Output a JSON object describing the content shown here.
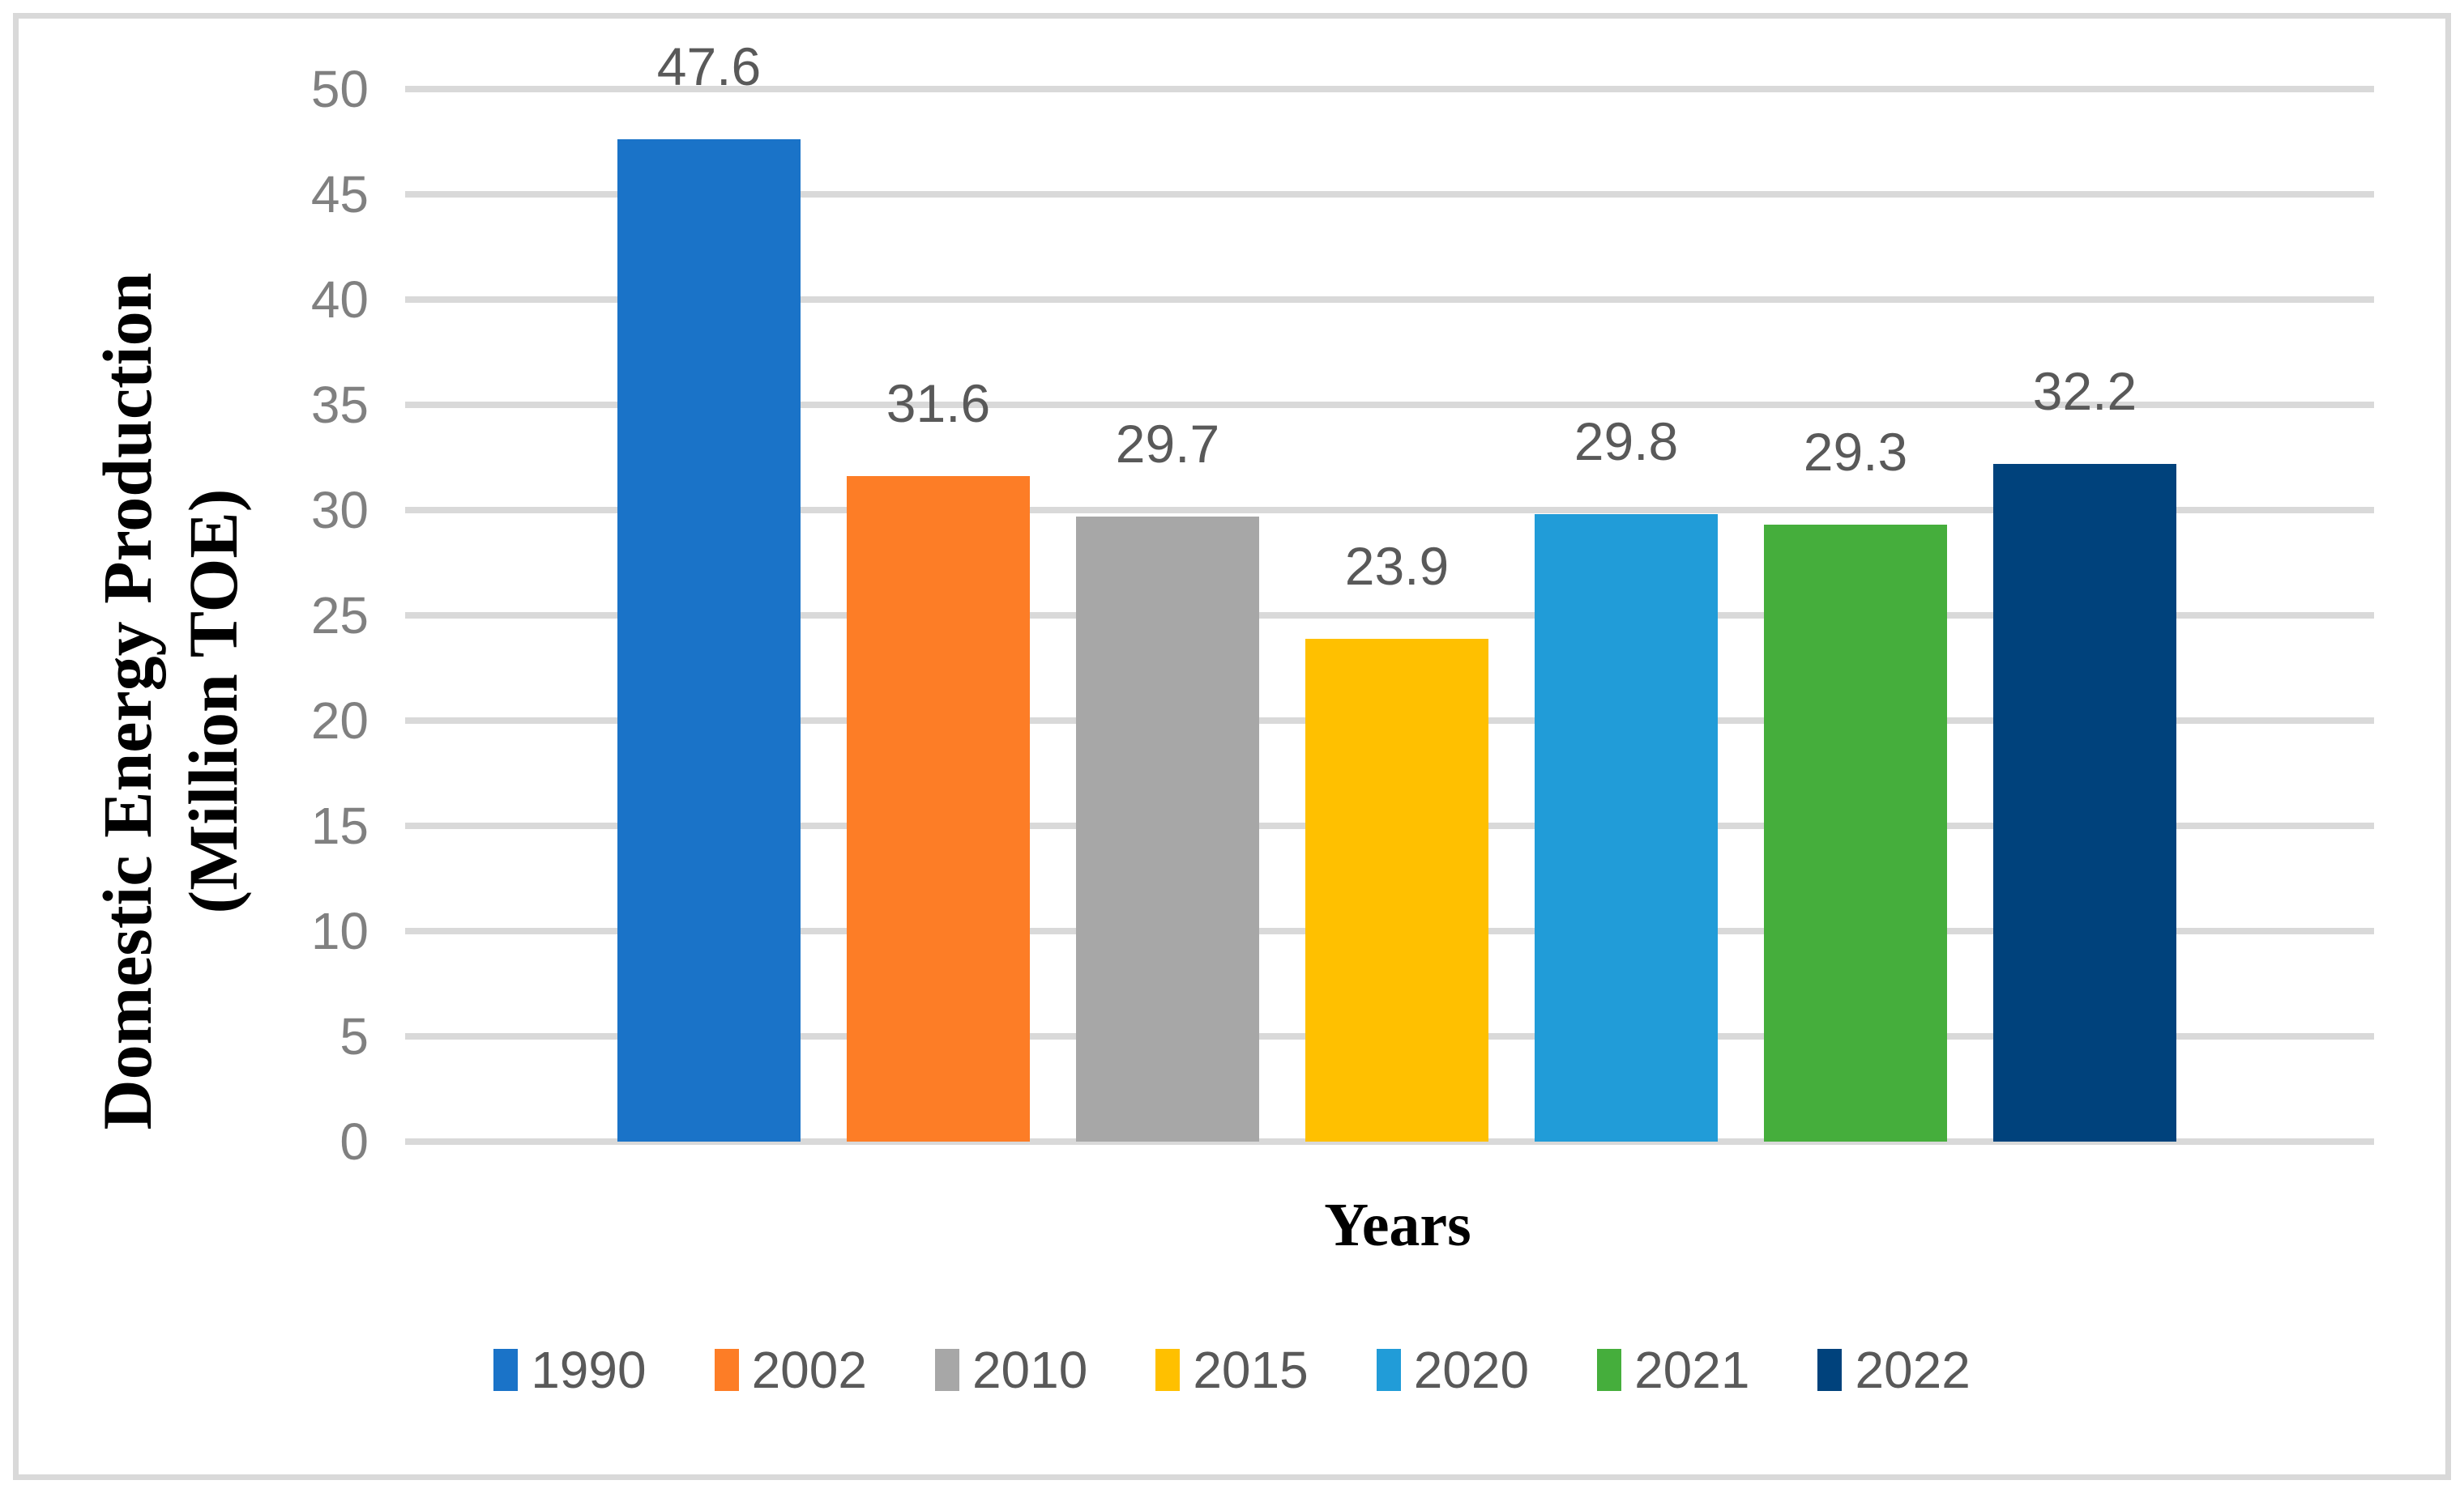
{
  "chart_data": {
    "type": "bar",
    "title": "",
    "categories": [
      "1990",
      "2002",
      "2010",
      "2015",
      "2020",
      "2021",
      "2022"
    ],
    "values": [
      47.6,
      31.6,
      29.7,
      23.9,
      29.8,
      29.3,
      32.2
    ],
    "data_labels": [
      "47.6",
      "31.6",
      "29.7",
      "23.9",
      "29.8",
      "29.3",
      "32.2"
    ],
    "series_colors": [
      "#1A73C8",
      "#FD7D26",
      "#A7A7A7",
      "#FFC000",
      "#219CD8",
      "#45AE3C",
      "#00427C"
    ],
    "xlabel": "Years",
    "ylabel_line1": "Domestic Energy Production",
    "ylabel_line2": "(Million TOE)",
    "ylim": [
      0,
      50
    ],
    "ytick_step": 5,
    "grid": "horizontal",
    "legend_position": "bottom"
  },
  "colors": {
    "gridline": "#D9D9D9",
    "frame_border": "#D9D9D9",
    "tick_label": "#808080",
    "data_label": "#595959",
    "legend_label": "#595959",
    "axis_title": "#000000",
    "background": "#FFFFFF"
  }
}
